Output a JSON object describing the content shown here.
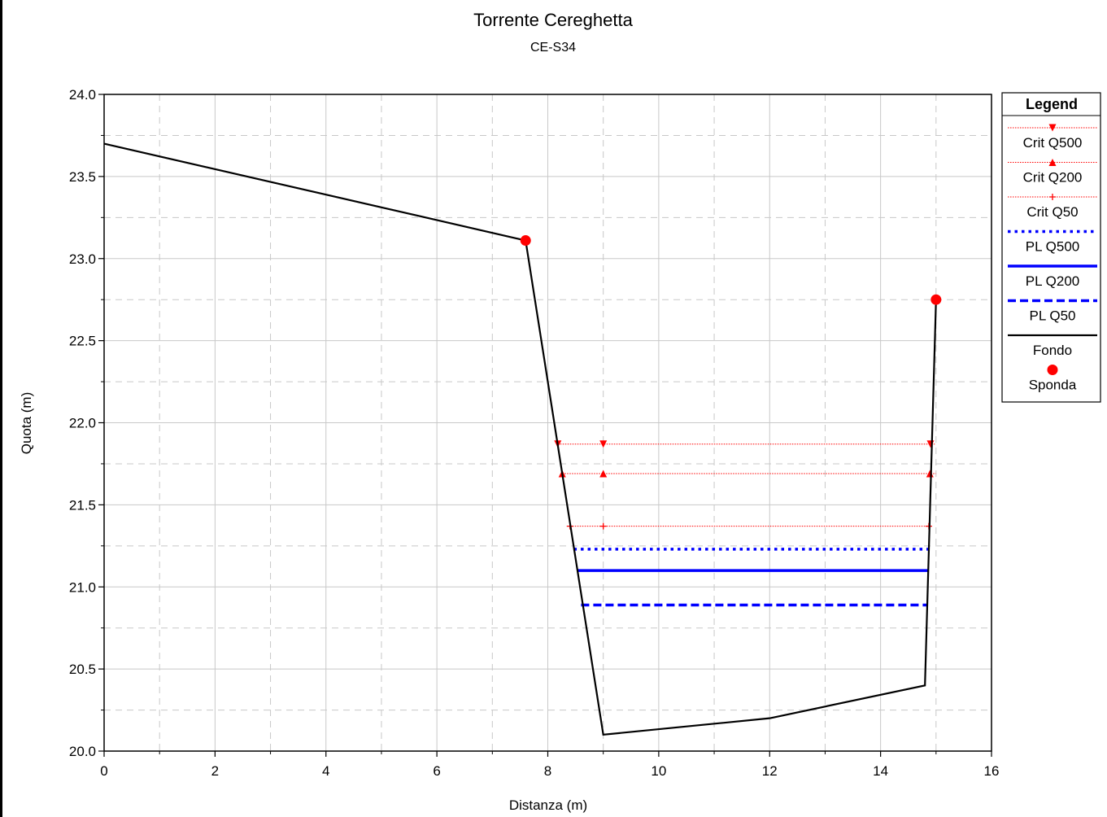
{
  "chart_data": {
    "type": "line",
    "title": "Torrente Cereghetta",
    "subtitle": "CE-S34",
    "xlabel": "Distanza (m)",
    "ylabel": "Quota (m)",
    "xlim": [
      0,
      16
    ],
    "ylim": [
      20.0,
      24.0
    ],
    "xticks": [
      "0",
      "2",
      "4",
      "6",
      "8",
      "10",
      "12",
      "14",
      "16"
    ],
    "yticks": [
      "20.0",
      "20.5",
      "21.0",
      "21.5",
      "22.0",
      "22.5",
      "23.0",
      "23.5",
      "24.0"
    ],
    "grid": true,
    "legend_position": "right",
    "legend_title": "Legend",
    "series": [
      {
        "name": "Crit Q500",
        "style": "dotted",
        "marker": "triangle-down",
        "color": "#ff0000",
        "x": [
          8.18,
          15.0
        ],
        "y": 21.87,
        "marker_x": [
          8.18,
          9.0,
          14.9
        ]
      },
      {
        "name": "Crit Q200",
        "style": "dotted",
        "marker": "triangle-up",
        "color": "#ff0000",
        "x": [
          8.26,
          15.0
        ],
        "y": 21.69,
        "marker_x": [
          8.26,
          9.0,
          14.89
        ]
      },
      {
        "name": "Crit Q50",
        "style": "dotted",
        "marker": "plus",
        "color": "#ff0000",
        "x": [
          8.4,
          14.88
        ],
        "y": 21.37,
        "marker_x": [
          8.4,
          9.0,
          14.87
        ]
      },
      {
        "name": "PL Q500",
        "style": "dotted-thick",
        "color": "#0000ff",
        "x": [
          8.47,
          14.87
        ],
        "y": 21.23
      },
      {
        "name": "PL Q200",
        "style": "solid-thick",
        "color": "#0000ff",
        "x": [
          8.53,
          14.86
        ],
        "y": 21.1
      },
      {
        "name": "PL Q50",
        "style": "dashed-thick",
        "color": "#0000ff",
        "x": [
          8.6,
          14.85
        ],
        "y": 20.89
      },
      {
        "name": "Fondo",
        "style": "solid",
        "color": "#000000",
        "points": [
          [
            0,
            23.7
          ],
          [
            7.6,
            23.11
          ],
          [
            9.0,
            20.1
          ],
          [
            12.0,
            20.2
          ],
          [
            14.8,
            20.4
          ],
          [
            15.0,
            22.75
          ]
        ]
      },
      {
        "name": "Sponda",
        "style": "marker",
        "marker": "circle",
        "color": "#ff0000",
        "points": [
          [
            7.6,
            23.11
          ],
          [
            15.0,
            22.75
          ]
        ]
      }
    ]
  }
}
